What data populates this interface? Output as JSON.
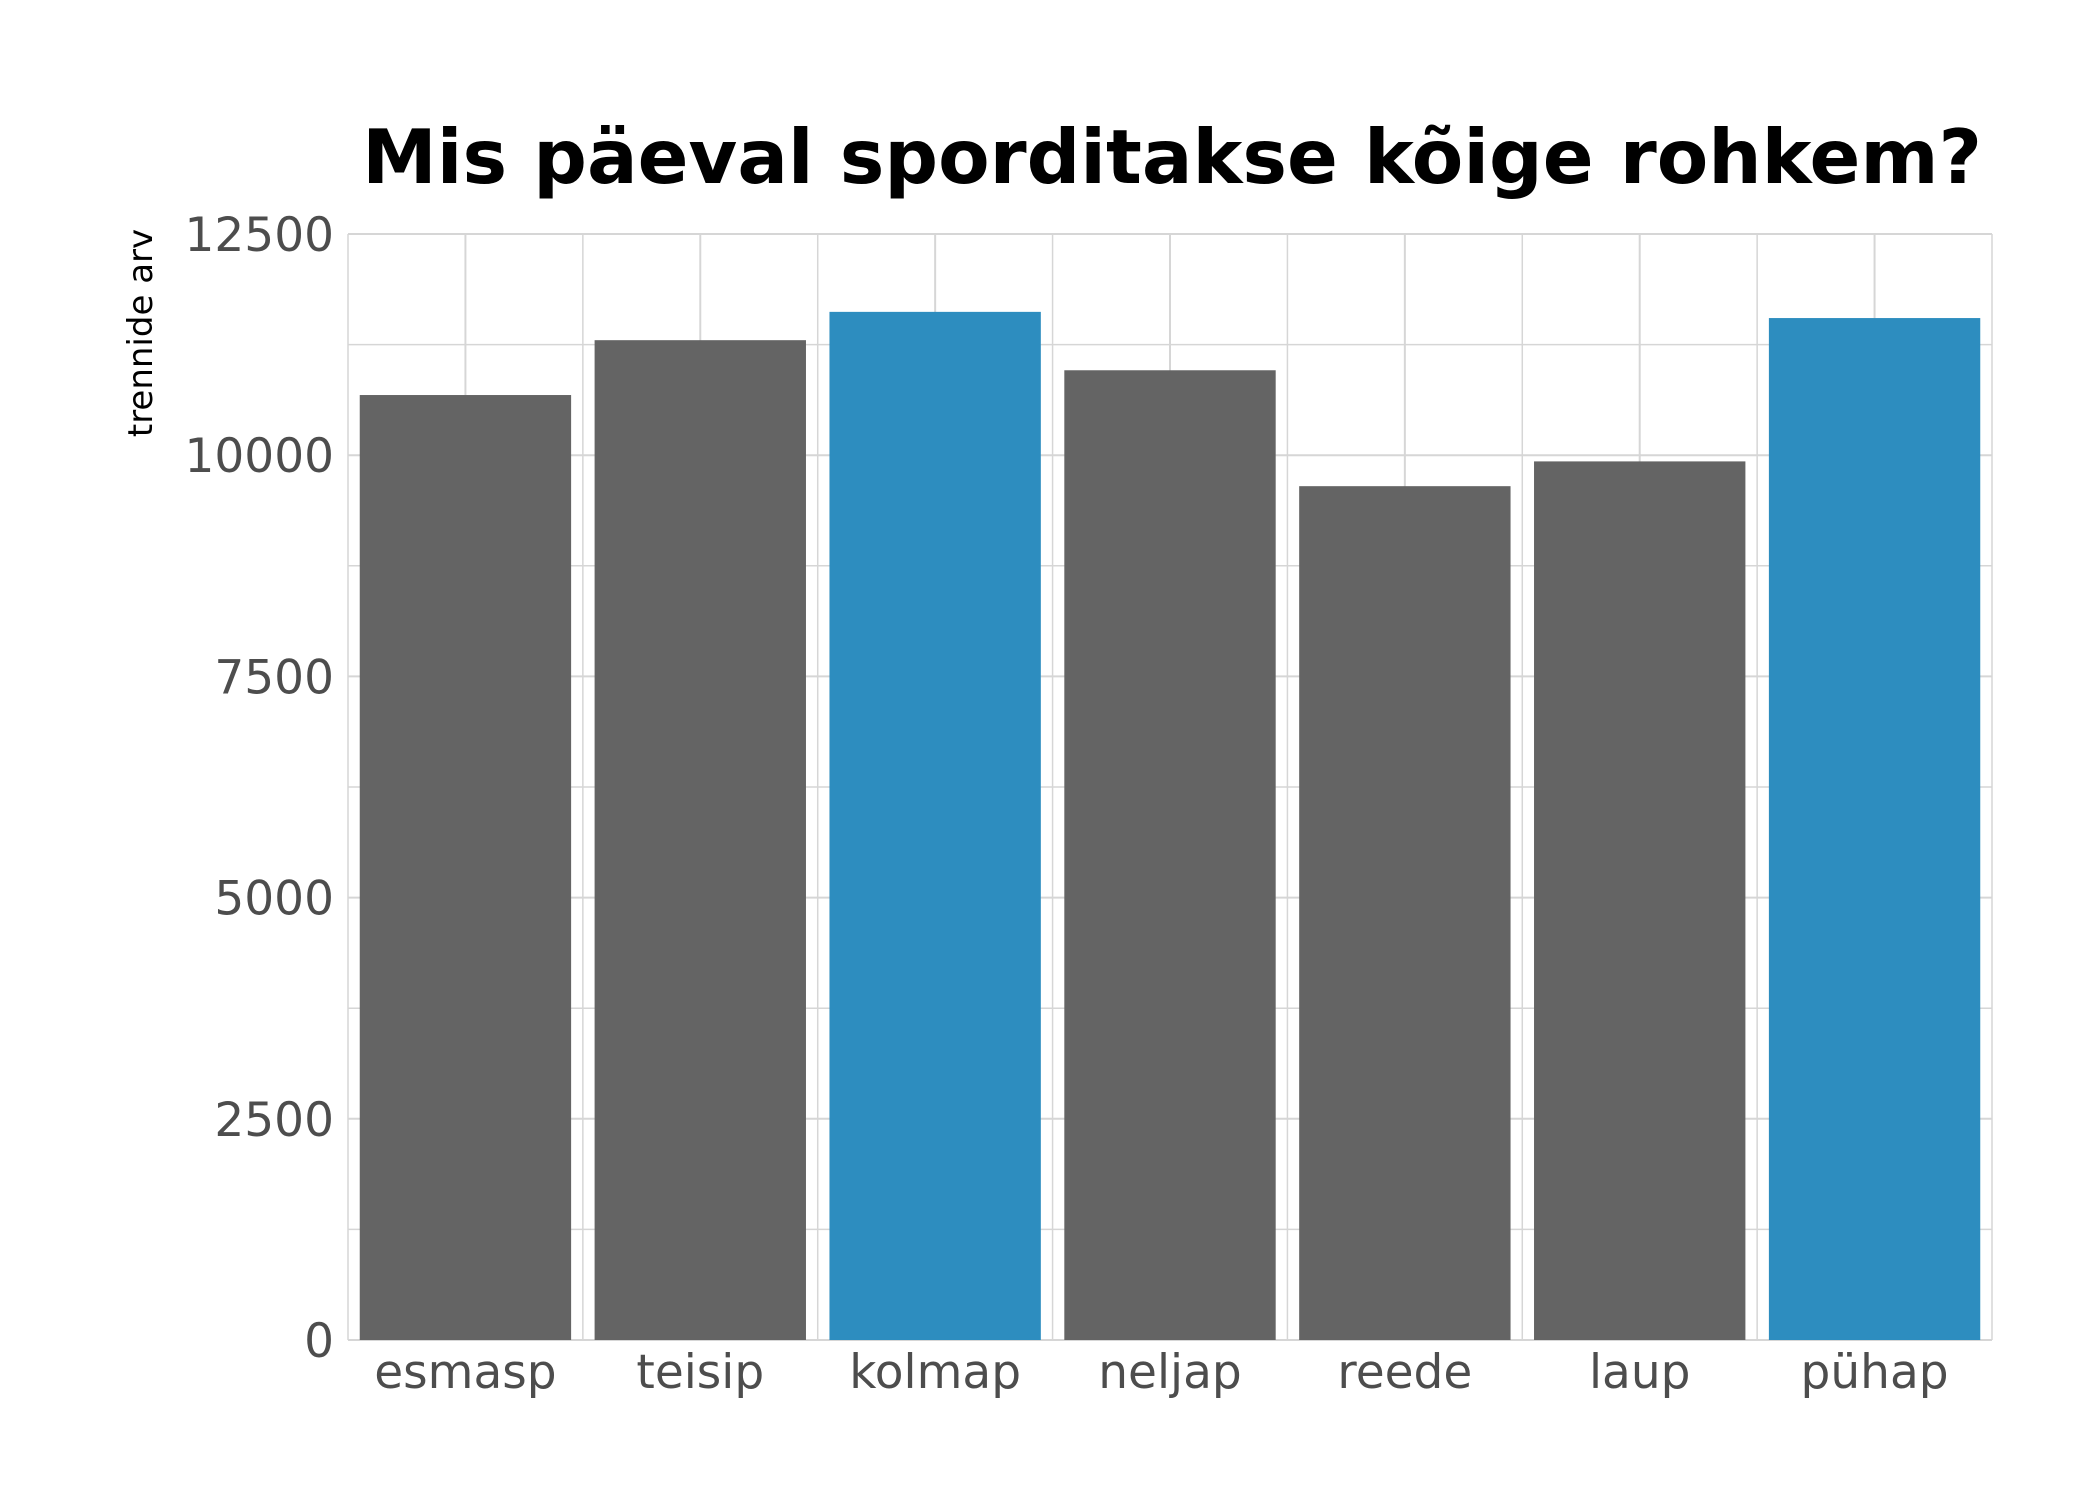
{
  "chart_data": {
    "type": "bar",
    "title": "Mis päeval sporditakse kõige rohkem?",
    "xlabel": "",
    "ylabel": "trennide arv",
    "categories": [
      "esmasp",
      "teisip",
      "kolmap",
      "neljap",
      "reede",
      "laup",
      "pühap"
    ],
    "values": [
      10680,
      11300,
      11620,
      10960,
      9650,
      9930,
      11550
    ],
    "highlighted": [
      "kolmap",
      "pühap"
    ],
    "ylim": [
      0,
      12500
    ],
    "yticks": [
      0,
      2500,
      5000,
      7500,
      10000,
      12500
    ],
    "grid": true,
    "legend": "none",
    "colors": {
      "default": "#646464",
      "highlight": "#2d8dbf",
      "grid": "#d6d6d6",
      "tick_text": "#4d4d4d"
    }
  }
}
